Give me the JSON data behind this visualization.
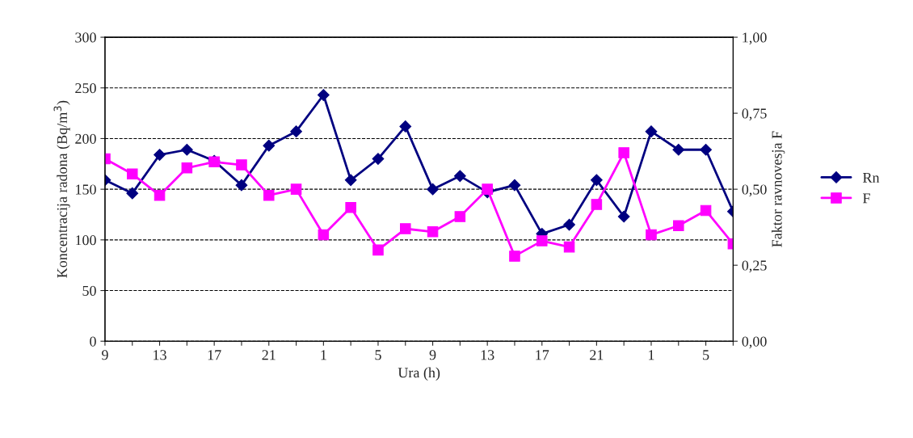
{
  "chart_data": {
    "type": "line",
    "xlabel": "Ura (h)",
    "ylabel": "Koncentracija radona (Bq/m$^{3}$)",
    "y2label": "Faktor ravnovesja F",
    "categories": [
      "9",
      null,
      "13",
      null,
      "17",
      null,
      "21",
      null,
      "1",
      null,
      "5",
      null,
      "9",
      null,
      "13",
      null,
      "17",
      null,
      "21",
      null,
      "1",
      null,
      "5",
      null
    ],
    "series": [
      {
        "name": "Rn",
        "color": "#000080",
        "marker": "diamond",
        "values": [
          159,
          146,
          184,
          189,
          178,
          154,
          193,
          207,
          243,
          159,
          180,
          212,
          150,
          163,
          147,
          154,
          106,
          115,
          159,
          123,
          207,
          189,
          189,
          128
        ]
      },
      {
        "name": "F",
        "color": "#ff00ff",
        "marker": "square",
        "axis": "y2",
        "values": [
          0.6,
          0.55,
          0.48,
          0.57,
          0.59,
          0.58,
          0.48,
          0.5,
          0.35,
          0.44,
          0.3,
          0.37,
          0.36,
          0.41,
          0.5,
          0.28,
          0.33,
          0.31,
          0.45,
          0.62,
          0.35,
          0.38,
          0.43,
          0.32
        ]
      }
    ],
    "ylim": [
      0,
      300
    ],
    "yticks": [
      0,
      50,
      100,
      150,
      200,
      250,
      300
    ],
    "y2lim": [
      0,
      1
    ],
    "y2ticks": [
      {
        "value": 0,
        "label": "0,00"
      },
      {
        "value": 0.25,
        "label": "0,25"
      },
      {
        "value": 0.5,
        "label": "0,50"
      },
      {
        "value": 0.75,
        "label": "0,75"
      },
      {
        "value": 1,
        "label": "1,00"
      }
    ],
    "grid": "y",
    "legend": "right",
    "line_style": "solid"
  }
}
